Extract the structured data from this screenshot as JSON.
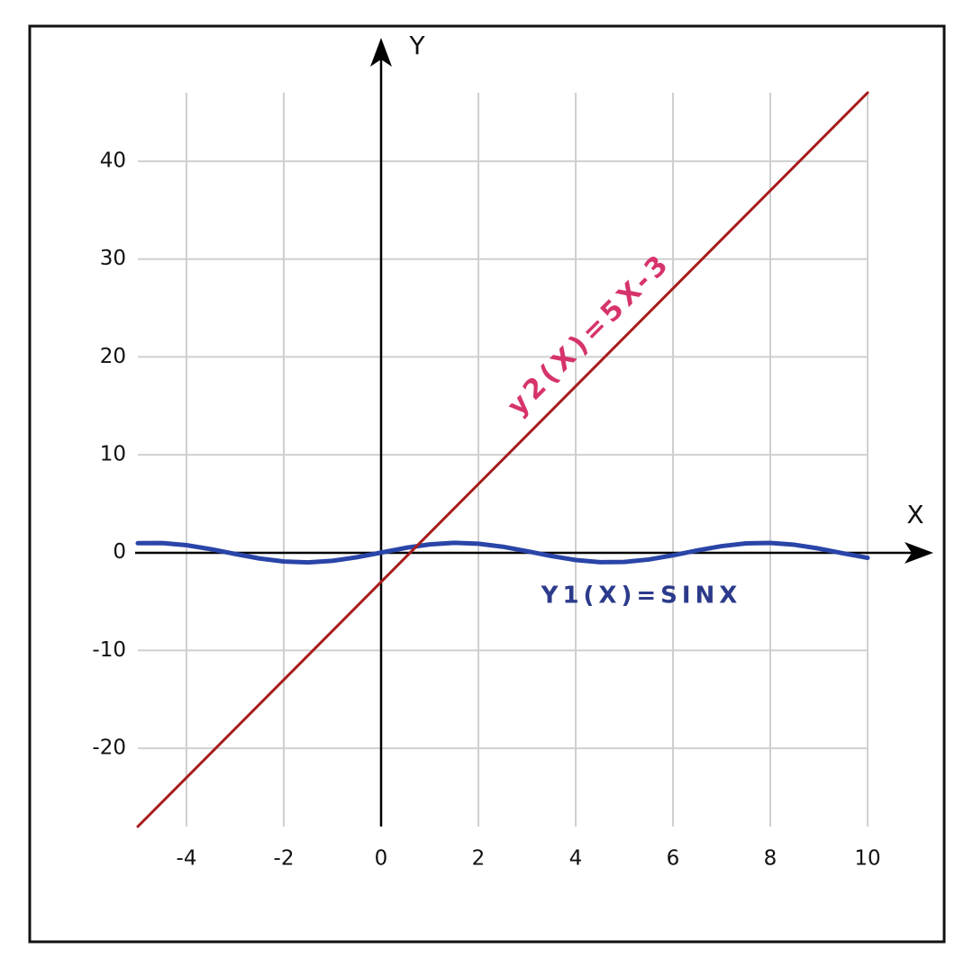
{
  "chart_data": {
    "type": "line",
    "x_label": "X",
    "y_label": "Y",
    "xlim": [
      -5,
      10
    ],
    "ylim": [
      -28,
      47
    ],
    "xticks": [
      -4,
      -2,
      0,
      2,
      4,
      6,
      8,
      10
    ],
    "yticks": [
      -20,
      -10,
      0,
      10,
      20,
      30,
      40
    ],
    "grid": true,
    "series": [
      {
        "name": "Y1(X)=SINX",
        "color": "#2a45a8",
        "x": [
          -5,
          -4.5,
          -4,
          -3.5,
          -3,
          -2.5,
          -2,
          -1.5,
          -1,
          -0.5,
          0,
          0.5,
          1,
          1.5,
          2,
          2.5,
          3,
          3.5,
          4,
          4.5,
          5,
          5.5,
          6,
          6.5,
          7,
          7.5,
          8,
          8.5,
          9,
          9.5,
          10
        ],
        "values": [
          0.96,
          0.98,
          0.76,
          0.35,
          -0.14,
          -0.6,
          -0.91,
          -1.0,
          -0.84,
          -0.48,
          0,
          0.48,
          0.84,
          1.0,
          0.91,
          0.6,
          0.14,
          -0.35,
          -0.76,
          -0.98,
          -0.96,
          -0.71,
          -0.28,
          0.22,
          0.66,
          0.94,
          0.99,
          0.8,
          0.41,
          -0.08,
          -0.54
        ]
      },
      {
        "name": "y2(X)=5X-3",
        "color": "#a81c1c",
        "x": [
          -5,
          10
        ],
        "values": [
          -28,
          47
        ]
      }
    ]
  }
}
